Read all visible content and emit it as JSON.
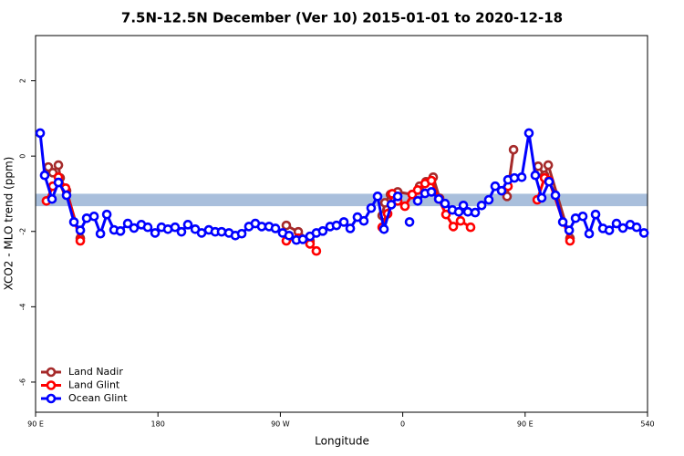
{
  "chart_data": {
    "type": "line",
    "title": "7.5N-12.5N December (Ver 10)   2015-01-01 to 2020-12-18",
    "xlabel": "Longitude",
    "ylabel": "XCO2 - MLO trend (ppm)",
    "xlim": [
      90,
      540
    ],
    "ylim": [
      -6.8,
      3.2
    ],
    "xticks": [
      {
        "value": 90,
        "label": "90 E"
      },
      180,
      {
        "value": 270,
        "label": "90 W"
      },
      {
        "value": 360,
        "label": "0"
      },
      {
        "value": 450,
        "label": "90 E"
      },
      540
    ],
    "yticks": [
      2,
      0,
      -2,
      -4,
      -6
    ],
    "band": [
      -1.33,
      -1.0
    ],
    "band_color": "#a9bfdc",
    "legend": "bottom-left",
    "series": [
      {
        "name": "Land Nadir",
        "color": "#a52a2a",
        "x": [
          99.4,
          102.7,
          106.8,
          108.1,
          112.8,
          122.9,
          null,
          274.4,
          283.2,
          291.8,
          null,
          344.9,
          346.9,
          351.0,
          356.3,
          367.0,
          372.4,
          377.1,
          382.4,
          387.1,
          null,
          436.7,
          441.5,
          null,
          459.6,
          464.3,
          467.0,
          483.0
        ],
        "values": [
          -0.29,
          -0.44,
          -0.24,
          -0.58,
          -0.92,
          -2.18,
          null,
          -1.84,
          -2.01,
          -2.25,
          null,
          -1.58,
          -1.24,
          -1.02,
          -0.95,
          -1.02,
          -0.8,
          -0.68,
          -0.56,
          -1.12,
          null,
          -1.07,
          0.17,
          null,
          -0.27,
          -0.51,
          -0.24,
          -2.18
        ]
      },
      {
        "name": "Land Glint",
        "color": "#ff0000",
        "x": [
          98.0,
          102.7,
          106.8,
          112.1,
          122.9,
          null,
          274.4,
          283.2,
          291.8,
          296.5,
          null,
          344.9,
          348.9,
          352.3,
          356.3,
          361.6,
          367.0,
          371.0,
          376.4,
          381.1,
          386.5,
          391.8,
          397.2,
          402.5,
          409.9,
          null,
          437.4,
          null,
          458.9,
          464.3,
          467.6,
          483.0
        ],
        "values": [
          -1.19,
          -0.8,
          -0.56,
          -0.85,
          -2.25,
          null,
          -2.25,
          -2.18,
          -2.33,
          -2.52,
          null,
          -1.89,
          -1.53,
          -1.0,
          -1.19,
          -1.33,
          -1.02,
          -0.9,
          -0.73,
          -0.65,
          -1.14,
          -1.55,
          -1.87,
          -1.72,
          -1.89,
          null,
          -0.8,
          null,
          -1.16,
          -0.58,
          -0.65,
          -2.25
        ]
      },
      {
        "name": "Ocean Glint",
        "color": "#0000ff",
        "x": [
          93.4,
          96.7,
          102.1,
          106.8,
          112.8,
          118.2,
          122.9,
          127.6,
          133.0,
          137.7,
          142.4,
          147.7,
          152.4,
          157.8,
          162.4,
          167.8,
          172.5,
          177.9,
          182.6,
          187.3,
          192.6,
          197.3,
          202.0,
          207.4,
          212.1,
          217.4,
          222.1,
          226.8,
          232.2,
          236.9,
          241.6,
          246.9,
          251.6,
          256.3,
          261.7,
          266.4,
          271.7,
          276.4,
          281.8,
          286.5,
          291.8,
          296.5,
          301.2,
          306.6,
          311.3,
          316.7,
          321.4,
          326.7,
          331.4,
          336.8,
          341.5,
          346.2,
          351.6,
          356.3,
          null,
          365.0,
          null,
          371.0,
          376.4,
          381.1,
          386.5,
          391.1,
          396.5,
          401.2,
          404.6,
          407.9,
          413.3,
          418.0,
          423.3,
          428.0,
          432.7,
          437.4,
          442.1,
          447.5,
          452.8,
          457.5,
          462.2,
          467.6,
          472.3,
          477.7,
          482.4,
          487.1,
          492.4,
          497.1,
          501.8,
          507.2,
          511.9,
          517.2,
          521.9,
          527.3,
          532.0,
          537.4
        ],
        "values": [
          0.61,
          -0.51,
          -1.14,
          -0.7,
          -1.04,
          -1.75,
          -1.97,
          -1.65,
          -1.6,
          -2.06,
          -1.55,
          -1.96,
          -1.99,
          -1.79,
          -1.91,
          -1.82,
          -1.89,
          -2.04,
          -1.89,
          -1.94,
          -1.89,
          -2.01,
          -1.82,
          -1.94,
          -2.04,
          -1.96,
          -2.01,
          -2.01,
          -2.04,
          -2.11,
          -2.06,
          -1.87,
          -1.79,
          -1.87,
          -1.87,
          -1.92,
          -2.04,
          -2.11,
          -2.23,
          -2.21,
          -2.13,
          -2.04,
          -1.99,
          -1.87,
          -1.84,
          -1.75,
          -1.92,
          -1.62,
          -1.72,
          -1.38,
          -1.07,
          -1.94,
          -1.29,
          -1.07,
          null,
          -1.75,
          null,
          -1.19,
          -0.99,
          -0.95,
          -1.14,
          -1.26,
          -1.43,
          -1.48,
          -1.31,
          -1.48,
          -1.5,
          -1.31,
          -1.16,
          -0.8,
          -0.92,
          -0.63,
          -0.58,
          -0.56,
          0.61,
          -0.51,
          -1.11,
          -0.68,
          -1.04,
          -1.75,
          -1.97,
          -1.65,
          -1.6,
          -2.06,
          -1.55,
          -1.92,
          -1.97,
          -1.79,
          -1.91,
          -1.82,
          -1.89,
          -2.04
        ]
      }
    ]
  }
}
